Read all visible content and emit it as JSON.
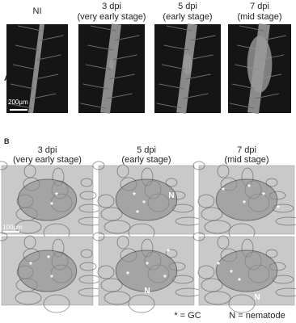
{
  "panel_a": {
    "label": "A",
    "columns": [
      {
        "title": "NI"
      },
      {
        "title": "3 dpi",
        "subtitle": "(very early stage)"
      },
      {
        "title": "5 dpi",
        "subtitle": "(early stage)"
      },
      {
        "title": "7 dpi",
        "subtitle": "(mid stage)"
      }
    ],
    "scale_bar": "200µm"
  },
  "panel_b": {
    "label": "B",
    "columns": [
      {
        "title": "3 dpi",
        "subtitle": "(very early stage)"
      },
      {
        "title": "5 dpi",
        "subtitle": "(early stage)"
      },
      {
        "title": "7 dpi",
        "subtitle": "(mid stage)"
      }
    ],
    "scale_bar": "100µm",
    "images": [
      {
        "marks": [
          "*",
          "*"
        ]
      },
      {
        "marks": [
          "*",
          "*",
          "*",
          "N"
        ]
      },
      {
        "marks": [
          "*",
          "*",
          "*",
          "*",
          "*"
        ]
      },
      {
        "marks": [
          "*",
          "*",
          "*"
        ]
      },
      {
        "marks": [
          "*",
          "*",
          "*",
          "*",
          "N"
        ]
      },
      {
        "marks": [
          "*",
          "*",
          "*",
          "N"
        ]
      }
    ]
  },
  "legend": {
    "gc": "* = GC",
    "nematode": "N = nematode"
  }
}
